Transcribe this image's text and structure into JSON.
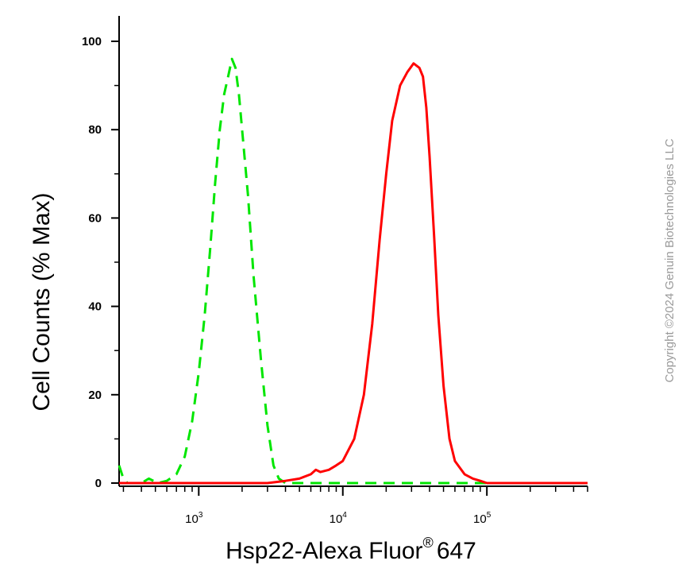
{
  "chart_data": {
    "type": "line",
    "title": "",
    "xlabel": "Hsp22-Alexa Fluor",
    "xlabel_mark": "®",
    "xlabel_suffix": "647",
    "ylabel": "Cell Counts (% Max)",
    "x_scale": "log",
    "xlim": [
      280,
      500000
    ],
    "ylim": [
      0,
      100
    ],
    "y_ticks": [
      0,
      20,
      40,
      60,
      80,
      100
    ],
    "x_ticks": [
      {
        "value": 1000,
        "base": "10",
        "exp": "3"
      },
      {
        "value": 10000,
        "base": "10",
        "exp": "4"
      },
      {
        "value": 100000,
        "base": "10",
        "exp": "5"
      }
    ],
    "grid": false,
    "legend": "none",
    "series": [
      {
        "color": "#00e600",
        "style": "dashed",
        "x": [
          280,
          300,
          320,
          360,
          400,
          450,
          520,
          600,
          700,
          800,
          900,
          1000,
          1100,
          1200,
          1300,
          1400,
          1500,
          1600,
          1700,
          1800,
          1900,
          2000,
          2200,
          2400,
          2700,
          3000,
          3300,
          3600,
          4000,
          5000,
          7000,
          10000,
          20000,
          50000,
          100000,
          200000,
          500000
        ],
        "y": [
          4,
          1,
          0,
          0,
          0,
          1,
          0,
          0.5,
          2,
          6,
          14,
          25,
          38,
          53,
          68,
          80,
          88,
          92,
          96,
          94,
          88,
          80,
          65,
          47,
          28,
          13,
          4,
          1,
          0,
          0,
          0,
          0,
          0,
          0,
          0,
          0,
          0
        ]
      },
      {
        "color": "#ff0000",
        "style": "solid",
        "x": [
          280,
          500,
          1000,
          2000,
          3000,
          4000,
          5000,
          6000,
          6500,
          7000,
          8000,
          9000,
          10000,
          12000,
          14000,
          16000,
          18000,
          20000,
          22000,
          25000,
          28000,
          31000,
          34000,
          36000,
          38000,
          40000,
          43000,
          46000,
          50000,
          55000,
          60000,
          70000,
          80000,
          90000,
          100000,
          150000,
          500000
        ],
        "y": [
          0,
          0,
          0,
          0,
          0,
          0.5,
          1,
          2,
          3,
          2.5,
          3,
          4,
          5,
          10,
          20,
          36,
          55,
          70,
          82,
          90,
          93,
          95,
          94,
          92,
          85,
          74,
          56,
          38,
          22,
          10,
          5,
          2,
          1,
          0.5,
          0,
          0,
          0
        ]
      }
    ]
  },
  "watermark": {
    "text": "Copyright ©2024 Genuin Biotechnologies LLC"
  }
}
